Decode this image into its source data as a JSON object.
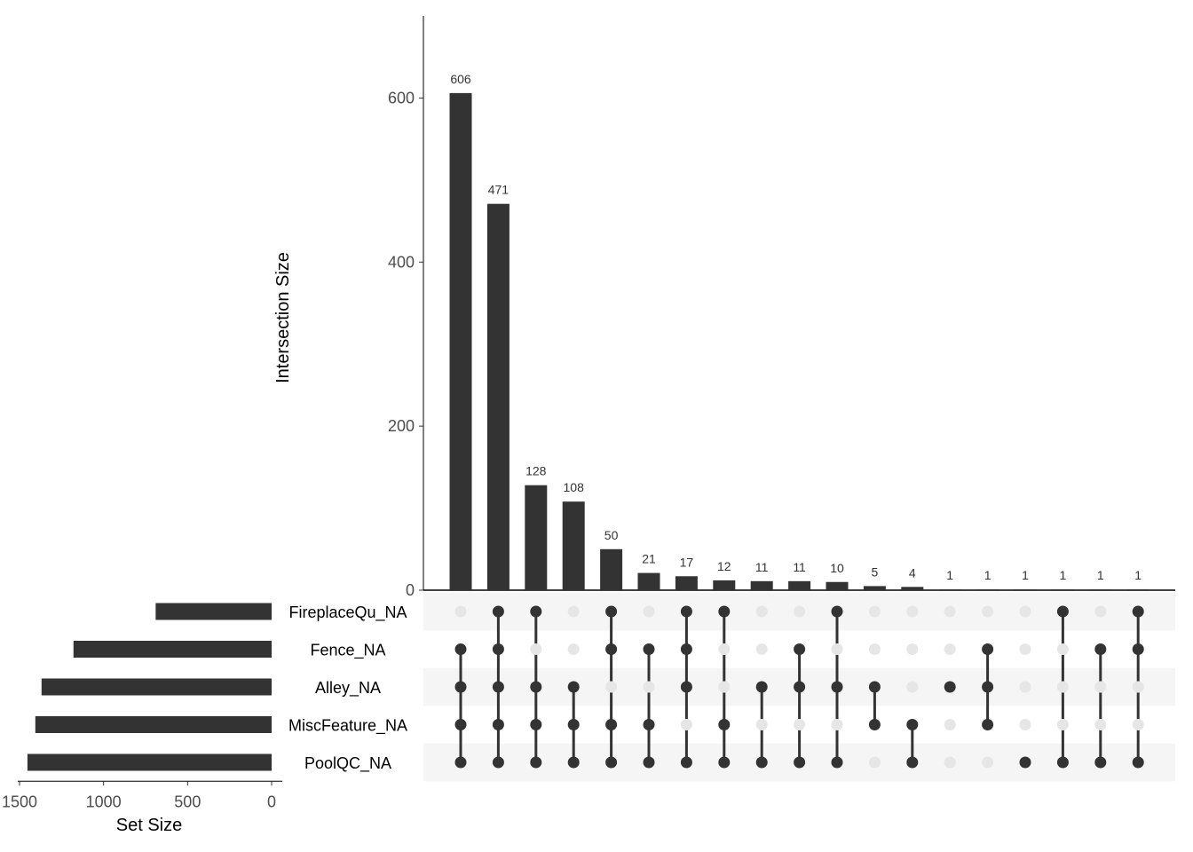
{
  "chart_data": {
    "type": "upset",
    "sets": [
      "FireplaceQu_NA",
      "Fence_NA",
      "Alley_NA",
      "MiscFeature_NA",
      "PoolQC_NA"
    ],
    "set_sizes": [
      690,
      1179,
      1369,
      1406,
      1453
    ],
    "intersections": [
      {
        "members": [
          "Fence_NA",
          "Alley_NA",
          "MiscFeature_NA",
          "PoolQC_NA"
        ],
        "size": 606
      },
      {
        "members": [
          "FireplaceQu_NA",
          "Fence_NA",
          "Alley_NA",
          "MiscFeature_NA",
          "PoolQC_NA"
        ],
        "size": 471
      },
      {
        "members": [
          "FireplaceQu_NA",
          "Alley_NA",
          "MiscFeature_NA",
          "PoolQC_NA"
        ],
        "size": 128
      },
      {
        "members": [
          "Alley_NA",
          "MiscFeature_NA",
          "PoolQC_NA"
        ],
        "size": 108
      },
      {
        "members": [
          "FireplaceQu_NA",
          "Fence_NA",
          "MiscFeature_NA",
          "PoolQC_NA"
        ],
        "size": 50
      },
      {
        "members": [
          "Fence_NA",
          "MiscFeature_NA",
          "PoolQC_NA"
        ],
        "size": 21
      },
      {
        "members": [
          "FireplaceQu_NA",
          "Fence_NA",
          "Alley_NA",
          "PoolQC_NA"
        ],
        "size": 17
      },
      {
        "members": [
          "FireplaceQu_NA",
          "MiscFeature_NA",
          "PoolQC_NA"
        ],
        "size": 12
      },
      {
        "members": [
          "Alley_NA",
          "PoolQC_NA"
        ],
        "size": 11
      },
      {
        "members": [
          "Fence_NA",
          "Alley_NA",
          "PoolQC_NA"
        ],
        "size": 11
      },
      {
        "members": [
          "FireplaceQu_NA",
          "Alley_NA",
          "PoolQC_NA"
        ],
        "size": 10
      },
      {
        "members": [
          "Alley_NA",
          "MiscFeature_NA"
        ],
        "size": 5
      },
      {
        "members": [
          "MiscFeature_NA",
          "PoolQC_NA"
        ],
        "size": 4
      },
      {
        "members": [
          "Alley_NA"
        ],
        "size": 1
      },
      {
        "members": [
          "Fence_NA",
          "Alley_NA",
          "MiscFeature_NA"
        ],
        "size": 1
      },
      {
        "members": [
          "PoolQC_NA"
        ],
        "size": 1
      },
      {
        "members": [
          "FireplaceQu_NA",
          "PoolQC_NA"
        ],
        "size": 1
      },
      {
        "members": [
          "Fence_NA",
          "PoolQC_NA"
        ],
        "size": 1
      },
      {
        "members": [
          "FireplaceQu_NA",
          "Fence_NA",
          "PoolQC_NA"
        ],
        "size": 1
      }
    ],
    "ylabel": "Intersection Size",
    "ylim": [
      0,
      700
    ],
    "yticks": [
      0,
      200,
      400,
      600
    ],
    "set_size_label": "Set Size",
    "set_size_lim": [
      1500,
      0
    ],
    "set_size_ticks": [
      1500,
      1000,
      500,
      0
    ],
    "colors": {
      "bar": "#333333",
      "dot_active": "#333333",
      "dot_inactive": "#e6e6e6",
      "stripe": "#f5f5f5",
      "axis_text": "#4d4d4d"
    }
  }
}
